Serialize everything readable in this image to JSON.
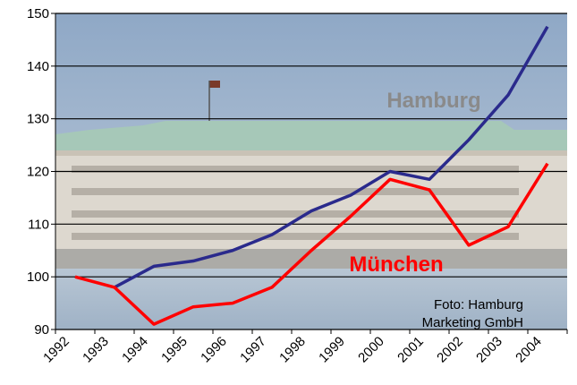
{
  "chart_data": {
    "type": "line",
    "categories": [
      "1992",
      "1993",
      "1994",
      "1995",
      "1996",
      "1997",
      "1998",
      "1999",
      "2000",
      "2001",
      "2002",
      "2003",
      "2004"
    ],
    "series": [
      {
        "name": "Hamburg",
        "color": "#2a2a8c",
        "label_color": "#8a8a8a",
        "values": [
          null,
          98,
          102,
          103,
          105,
          108,
          112.5,
          115.5,
          120,
          118.5,
          126,
          134.5,
          147.5
        ]
      },
      {
        "name": "München",
        "color": "#ff0000",
        "label_color": "#ff0000",
        "values": [
          100,
          98,
          91,
          94.3,
          95,
          98,
          105,
          111.5,
          118.5,
          116.5,
          106,
          109.5,
          121.5
        ]
      }
    ],
    "ylim": [
      90,
      150
    ],
    "yticks": [
      90,
      100,
      110,
      120,
      130,
      140,
      150
    ],
    "grid": true,
    "photo_credit": [
      "Foto: Hamburg",
      "Marketing GmbH"
    ]
  }
}
